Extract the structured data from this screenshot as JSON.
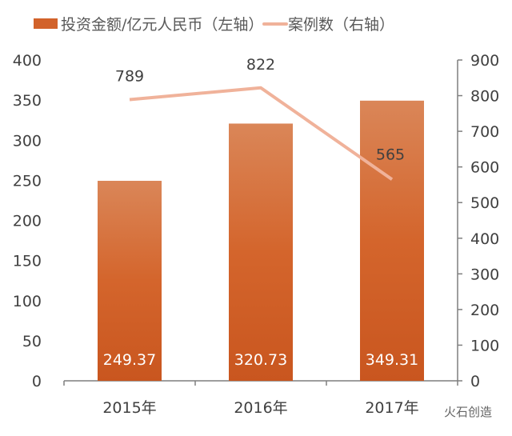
{
  "chart_data": {
    "type": "bar+line",
    "categories": [
      "2015年",
      "2016年",
      "2017年"
    ],
    "series": [
      {
        "name": "投资金额/亿元人民币（左轴）",
        "type": "bar",
        "axis": "left",
        "values": [
          249.37,
          320.73,
          349.31
        ],
        "labels": [
          "249.37",
          "320.73",
          "349.31"
        ],
        "color": "#d2622a"
      },
      {
        "name": "案例数（右轴）",
        "type": "line",
        "axis": "right",
        "values": [
          789,
          822,
          565
        ],
        "labels": [
          "789",
          "822",
          "565"
        ],
        "color": "#f0b29a"
      }
    ],
    "left_axis": {
      "range": [
        0,
        400
      ],
      "ticks": [
        "0",
        "50",
        "100",
        "150",
        "200",
        "250",
        "300",
        "350",
        "400"
      ]
    },
    "right_axis": {
      "range": [
        0,
        900
      ],
      "ticks": [
        "0",
        "100",
        "200",
        "300",
        "400",
        "500",
        "600",
        "700",
        "800",
        "900"
      ]
    },
    "grid": false,
    "legend": "top"
  },
  "watermark": "火石创造"
}
